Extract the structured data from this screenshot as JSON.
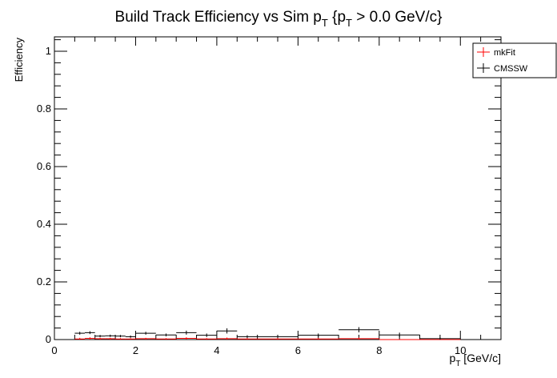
{
  "chart_data": {
    "type": "step-histogram",
    "title_main": "Build Track Efficiency vs Sim p",
    "title_sub1": "T",
    "title_mid": " {p",
    "title_sub2": "T",
    "title_tail": " > 0.0 GeV/c}",
    "xlabel_main": "p",
    "xlabel_sub": "T",
    "xlabel_tail": " [GeV/c]",
    "ylabel": "Efficiency",
    "xlim": [
      0,
      11
    ],
    "ylim": [
      0,
      1.05
    ],
    "x_ticks": [
      0,
      2,
      4,
      6,
      8,
      10
    ],
    "x_tick_labels": [
      "0",
      "2",
      "4",
      "6",
      "8",
      "10"
    ],
    "y_ticks": [
      0,
      0.2,
      0.4,
      0.6,
      0.8,
      1
    ],
    "y_tick_labels": [
      "0",
      "0.2",
      "0.4",
      "0.6",
      "0.8",
      "1"
    ],
    "legend": {
      "placement": "top-right"
    },
    "series": [
      {
        "name": "mkFit",
        "color": "#ff0000",
        "bins": [
          {
            "lo": 0.5,
            "hi": 0.75,
            "y": 0.002,
            "err": 0.004
          },
          {
            "lo": 0.75,
            "hi": 1.0,
            "y": 0.004,
            "err": 0.004
          },
          {
            "lo": 1.0,
            "hi": 1.25,
            "y": 0.003,
            "err": 0.003
          },
          {
            "lo": 1.25,
            "hi": 1.5,
            "y": 0.003,
            "err": 0.003
          },
          {
            "lo": 1.5,
            "hi": 1.75,
            "y": 0.002,
            "err": 0.003
          },
          {
            "lo": 1.75,
            "hi": 2.0,
            "y": 0.002,
            "err": 0.003
          },
          {
            "lo": 2.0,
            "hi": 2.5,
            "y": 0.003,
            "err": 0.003
          },
          {
            "lo": 2.5,
            "hi": 3.0,
            "y": 0.002,
            "err": 0.003
          },
          {
            "lo": 3.0,
            "hi": 3.5,
            "y": 0.004,
            "err": 0.004
          },
          {
            "lo": 3.5,
            "hi": 4.0,
            "y": 0.002,
            "err": 0.003
          },
          {
            "lo": 4.0,
            "hi": 4.5,
            "y": 0.003,
            "err": 0.004
          },
          {
            "lo": 4.5,
            "hi": 5.0,
            "y": 0.002,
            "err": 0.003
          },
          {
            "lo": 5.0,
            "hi": 6.0,
            "y": 0.002,
            "err": 0.003
          },
          {
            "lo": 6.0,
            "hi": 7.0,
            "y": 0.002,
            "err": 0.003
          },
          {
            "lo": 7.0,
            "hi": 8.0,
            "y": 0.003,
            "err": 0.004
          },
          {
            "lo": 8.0,
            "hi": 9.0,
            "y": 0.0,
            "err": 0.0
          },
          {
            "lo": 9.0,
            "hi": 10.0,
            "y": 0.0,
            "err": 0.0
          }
        ]
      },
      {
        "name": "CMSSW",
        "color": "#000000",
        "bins": [
          {
            "lo": 0.5,
            "hi": 0.75,
            "y": 0.022,
            "err": 0.005
          },
          {
            "lo": 0.75,
            "hi": 1.0,
            "y": 0.024,
            "err": 0.005
          },
          {
            "lo": 1.0,
            "hi": 1.25,
            "y": 0.012,
            "err": 0.004
          },
          {
            "lo": 1.25,
            "hi": 1.5,
            "y": 0.013,
            "err": 0.004
          },
          {
            "lo": 1.5,
            "hi": 1.75,
            "y": 0.012,
            "err": 0.004
          },
          {
            "lo": 1.75,
            "hi": 2.0,
            "y": 0.01,
            "err": 0.004
          },
          {
            "lo": 2.0,
            "hi": 2.5,
            "y": 0.022,
            "err": 0.005
          },
          {
            "lo": 2.5,
            "hi": 3.0,
            "y": 0.016,
            "err": 0.005
          },
          {
            "lo": 3.0,
            "hi": 3.5,
            "y": 0.024,
            "err": 0.007
          },
          {
            "lo": 3.5,
            "hi": 4.0,
            "y": 0.015,
            "err": 0.006
          },
          {
            "lo": 4.0,
            "hi": 4.5,
            "y": 0.03,
            "err": 0.009
          },
          {
            "lo": 4.5,
            "hi": 5.0,
            "y": 0.01,
            "err": 0.005
          },
          {
            "lo": 5.0,
            "hi": 6.0,
            "y": 0.01,
            "err": 0.004
          },
          {
            "lo": 6.0,
            "hi": 7.0,
            "y": 0.015,
            "err": 0.006
          },
          {
            "lo": 7.0,
            "hi": 8.0,
            "y": 0.034,
            "err": 0.009
          },
          {
            "lo": 8.0,
            "hi": 9.0,
            "y": 0.016,
            "err": 0.008
          },
          {
            "lo": 9.0,
            "hi": 10.0,
            "y": 0.003,
            "err": 0.004
          }
        ]
      }
    ]
  }
}
